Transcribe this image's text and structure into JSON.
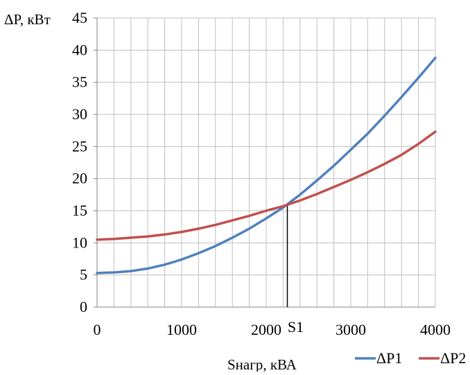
{
  "chart_data": {
    "type": "line",
    "ylabel": "ΔP, кВт",
    "xlabel": "Sнагр, кВА",
    "xlim": [
      0,
      4000
    ],
    "ylim": [
      0,
      45
    ],
    "x_ticks": [
      0,
      1000,
      2000,
      3000,
      4000
    ],
    "y_ticks": [
      0,
      5,
      10,
      15,
      20,
      25,
      30,
      35,
      40,
      45
    ],
    "x_grid_step": 200,
    "grid": true,
    "legend_position": "bottom-right",
    "marker": {
      "label": "S1",
      "x": 2250,
      "y": 15.8
    },
    "series": [
      {
        "name": "ΔP1",
        "color": "#4F81BD",
        "x": [
          0,
          200,
          400,
          600,
          800,
          1000,
          1200,
          1400,
          1600,
          1800,
          2000,
          2200,
          2400,
          2600,
          2800,
          3000,
          3200,
          3400,
          3600,
          3800,
          4000
        ],
        "y": [
          5.3,
          5.4,
          5.6,
          6.0,
          6.6,
          7.4,
          8.4,
          9.5,
          10.8,
          12.2,
          13.8,
          15.5,
          17.5,
          19.7,
          22.0,
          24.5,
          27.0,
          29.8,
          32.7,
          35.7,
          38.8
        ]
      },
      {
        "name": "ΔP2",
        "color": "#C0504D",
        "x": [
          0,
          200,
          400,
          600,
          800,
          1000,
          1200,
          1400,
          1600,
          1800,
          2000,
          2200,
          2400,
          2600,
          2800,
          3000,
          3200,
          3400,
          3600,
          3800,
          4000
        ],
        "y": [
          10.5,
          10.6,
          10.8,
          11.0,
          11.3,
          11.7,
          12.2,
          12.8,
          13.5,
          14.2,
          15.0,
          15.7,
          16.6,
          17.6,
          18.7,
          19.8,
          21.0,
          22.3,
          23.7,
          25.4,
          27.3
        ]
      }
    ]
  }
}
